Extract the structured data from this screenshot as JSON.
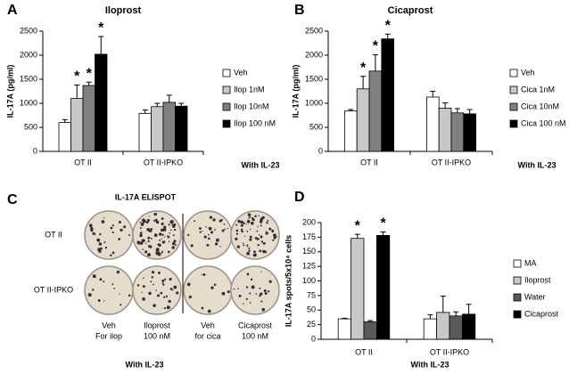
{
  "chart_data": [
    {
      "type": "bar",
      "panel_label": "A",
      "title": "Iloprost",
      "y_label": "IL-17A (pg/ml)",
      "categories": [
        "OT II",
        "OT II-IPKO"
      ],
      "series": [
        {
          "name": "Veh",
          "color": "#ffffff",
          "values": [
            600,
            790
          ],
          "errors": [
            60,
            70
          ]
        },
        {
          "name": "Ilop 1nM",
          "color": "#c8c8c8",
          "values": [
            1100,
            930
          ],
          "errors": [
            280,
            70
          ]
        },
        {
          "name": "Ilop 10nM",
          "color": "#808080",
          "values": [
            1370,
            1020
          ],
          "errors": [
            70,
            150
          ]
        },
        {
          "name": "Ilop 100 nM",
          "color": "#000000",
          "values": [
            2020,
            940
          ],
          "errors": [
            370,
            60
          ]
        }
      ],
      "ylim": [
        0,
        2500
      ],
      "yticks": [
        0,
        500,
        1000,
        1500,
        2000,
        2500
      ],
      "legend": "right",
      "annotations": [
        {
          "text": "*",
          "series": 1,
          "category": 0
        },
        {
          "text": "*",
          "series": 2,
          "category": 0
        },
        {
          "text": "*",
          "series": 3,
          "category": 0
        }
      ],
      "note": "With IL-23"
    },
    {
      "type": "bar",
      "panel_label": "B",
      "title": "Cicaprost",
      "y_label": "IL-17A (pg/ml)",
      "categories": [
        "OT II",
        "OT II-IPKO"
      ],
      "series": [
        {
          "name": "Veh",
          "color": "#ffffff",
          "values": [
            840,
            1130
          ],
          "errors": [
            30,
            120
          ]
        },
        {
          "name": "Cica 1nM",
          "color": "#c8c8c8",
          "values": [
            1300,
            900
          ],
          "errors": [
            260,
            110
          ]
        },
        {
          "name": "Cica 10nM",
          "color": "#808080",
          "values": [
            1670,
            800
          ],
          "errors": [
            340,
            90
          ]
        },
        {
          "name": "Cica 100 nM",
          "color": "#000000",
          "values": [
            2340,
            780
          ],
          "errors": [
            100,
            90
          ]
        }
      ],
      "ylim": [
        0,
        2500
      ],
      "yticks": [
        0,
        500,
        1000,
        1500,
        2000,
        2500
      ],
      "legend": "right",
      "annotations": [
        {
          "text": "*",
          "series": 1,
          "category": 0
        },
        {
          "text": "*",
          "series": 2,
          "category": 0
        },
        {
          "text": "*",
          "series": 3,
          "category": 0
        }
      ],
      "note": "With  IL-23"
    },
    {
      "type": "bar",
      "panel_label": "D",
      "y_label": "IL-17A spots/5x10⁴ cells",
      "categories": [
        "OT II",
        "OT II-IPKO"
      ],
      "series": [
        {
          "name": "MA",
          "color": "#ffffff",
          "values": [
            35,
            35
          ],
          "errors": [
            1,
            7
          ]
        },
        {
          "name": "Iloprost",
          "color": "#c8c8c8",
          "values": [
            173,
            46
          ],
          "errors": [
            7,
            28
          ]
        },
        {
          "name": "Water",
          "color": "#595959",
          "values": [
            30,
            40
          ],
          "errors": [
            2,
            7
          ]
        },
        {
          "name": "Cicaprost",
          "color": "#000000",
          "values": [
            178,
            43
          ],
          "errors": [
            6,
            17
          ]
        }
      ],
      "ylim": [
        0,
        200
      ],
      "yticks": [
        0,
        25,
        50,
        75,
        100,
        125,
        150,
        175,
        200
      ],
      "legend": "right",
      "annotations": [
        {
          "text": "*",
          "series": 1,
          "category": 0
        },
        {
          "text": "*",
          "series": 3,
          "category": 0
        }
      ],
      "note": "With  IL-23"
    }
  ],
  "elispot": {
    "panel_label": "C",
    "title": "IL-17A ELISPOT",
    "rows": [
      "OT II",
      "OT II-IPKO"
    ],
    "columns": [
      [
        "Veh",
        "For ilop"
      ],
      [
        "Iloprost",
        "100 nM"
      ],
      [
        "Veh",
        "for cica"
      ],
      [
        "Cicaprost",
        "100 nM"
      ]
    ],
    "note": "With  IL-23"
  }
}
